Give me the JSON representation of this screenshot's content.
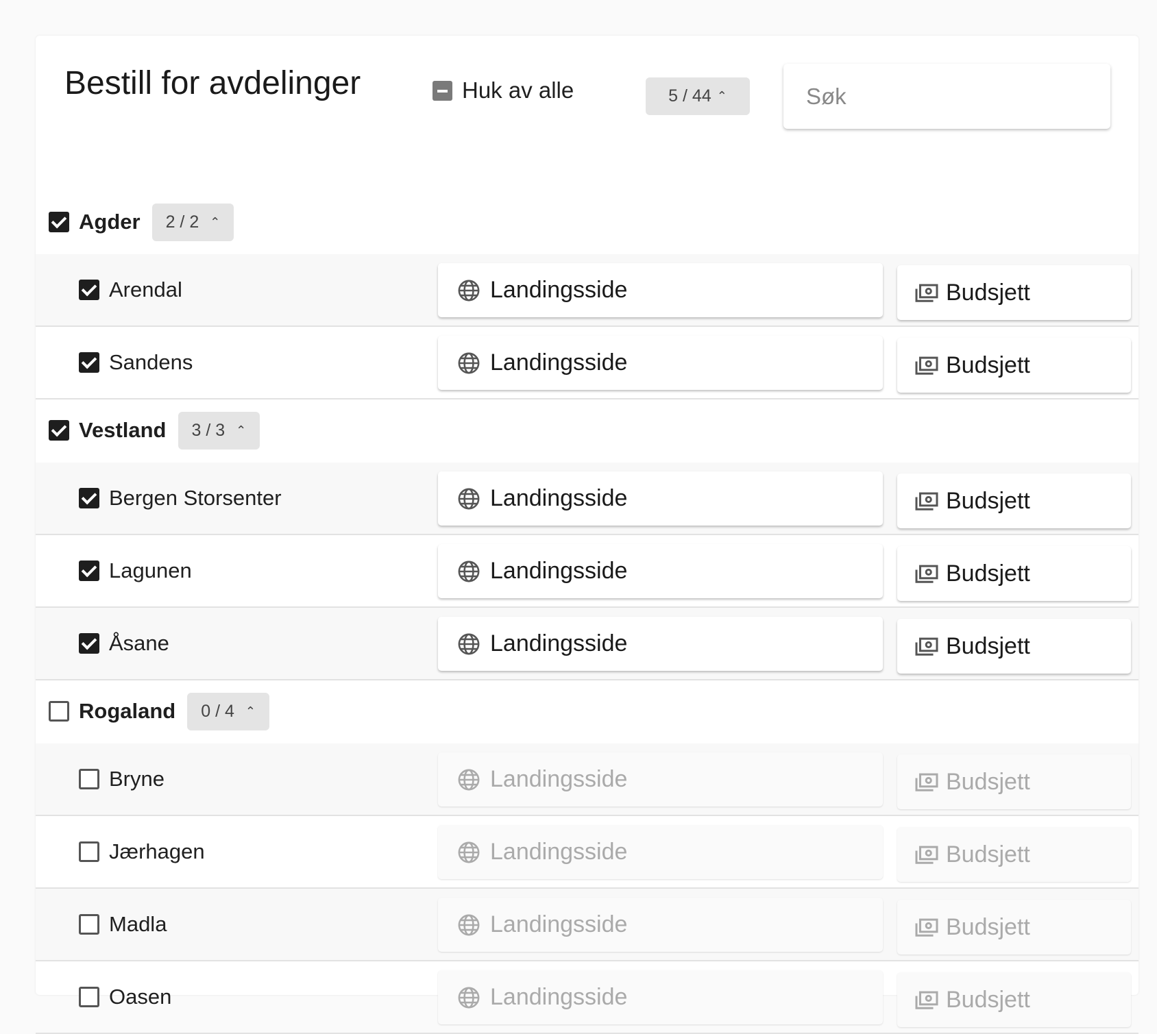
{
  "title": "Bestill for avdelinger",
  "select_all": {
    "label": "Huk av alle",
    "state": "indeterminate"
  },
  "total_count": "5 / 44",
  "search": {
    "placeholder": "Søk",
    "value": ""
  },
  "button_labels": {
    "landing": "Landingsside",
    "budget": "Budsjett"
  },
  "groups": [
    {
      "name": "Agder",
      "count": "2 / 2",
      "checked": true,
      "items": [
        {
          "name": "Arendal",
          "checked": true
        },
        {
          "name": "Sandens",
          "checked": true
        }
      ]
    },
    {
      "name": "Vestland",
      "count": "3 / 3",
      "checked": true,
      "items": [
        {
          "name": "Bergen Storsenter",
          "checked": true
        },
        {
          "name": "Lagunen",
          "checked": true
        },
        {
          "name": "Åsane",
          "checked": true
        }
      ]
    },
    {
      "name": "Rogaland",
      "count": "0 / 4",
      "checked": false,
      "items": [
        {
          "name": "Bryne",
          "checked": false
        },
        {
          "name": "Jærhagen",
          "checked": false
        },
        {
          "name": "Madla",
          "checked": false
        },
        {
          "name": "Oasen",
          "checked": false
        }
      ]
    }
  ]
}
